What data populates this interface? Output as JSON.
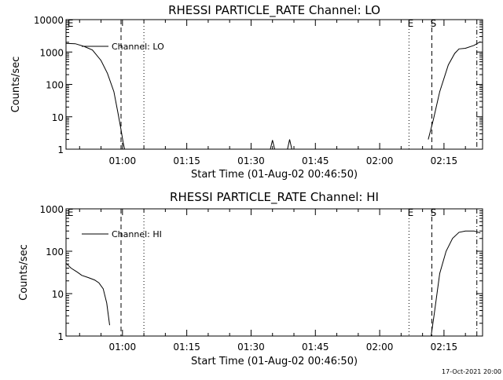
{
  "footer": "17-Oct-2021 20:00",
  "chart_data": [
    {
      "type": "line",
      "title": "RHESSI PARTICLE_RATE Channel: LO",
      "xlabel": "Start Time (01-Aug-02 00:46:50)",
      "ylabel": "Counts/sec",
      "yscale": "log",
      "ylim": [
        1,
        10000
      ],
      "xlim": [
        "00:46:50",
        "02:24:00"
      ],
      "x_ticks": [
        "01:00",
        "01:15",
        "01:30",
        "01:45",
        "02:00",
        "02:15"
      ],
      "y_ticks": [
        "1",
        "10",
        "100",
        "1000",
        "10000"
      ],
      "legend": "top-left",
      "series": [
        {
          "name": "Channel: LO",
          "segments": [
            {
              "x": [
                "00:46:50",
                "00:49:00",
                "00:51:00",
                "00:53:00",
                "00:55:00",
                "00:56:30",
                "00:58:00",
                "00:59:00",
                "00:59:40",
                "01:00:10",
                "01:00:30"
              ],
              "y": [
                1850,
                1800,
                1500,
                1150,
                550,
                220,
                60,
                12,
                4,
                1.6,
                1
              ]
            },
            {
              "x": [
                "01:34:30",
                "01:35:00",
                "01:35:30"
              ],
              "y": [
                1,
                1.9,
                1
              ]
            },
            {
              "x": [
                "01:38:30",
                "01:39:00",
                "01:39:30"
              ],
              "y": [
                1,
                2.0,
                1
              ]
            },
            {
              "x": [
                "02:11:20",
                "02:12:30",
                "02:14:00",
                "02:16:00",
                "02:17:30",
                "02:18:30",
                "02:20:00",
                "02:22:00",
                "02:23:30"
              ],
              "y": [
                2,
                8,
                60,
                400,
                900,
                1250,
                1300,
                1600,
                2100
              ]
            }
          ]
        }
      ],
      "markers": [
        {
          "time": "00:47:30",
          "label": "E",
          "style": "none"
        },
        {
          "time": "00:59:40",
          "label": "",
          "style": "dashed"
        },
        {
          "time": "01:05:00",
          "label": "",
          "style": "dotted"
        },
        {
          "time": "02:06:50",
          "label": "E",
          "style": "dotted"
        },
        {
          "time": "02:12:10",
          "label": "S",
          "style": "dashed"
        },
        {
          "time": "02:22:40",
          "label": "",
          "style": "dashdot"
        }
      ]
    },
    {
      "type": "line",
      "title": "RHESSI PARTICLE_RATE Channel: HI",
      "xlabel": "Start Time (01-Aug-02 00:46:50)",
      "ylabel": "Counts/sec",
      "yscale": "log",
      "ylim": [
        1,
        1000
      ],
      "xlim": [
        "00:46:50",
        "02:24:00"
      ],
      "x_ticks": [
        "01:00",
        "01:15",
        "01:30",
        "01:45",
        "02:00",
        "02:15"
      ],
      "y_ticks": [
        "1",
        "10",
        "100",
        "1000"
      ],
      "legend": "top-left",
      "series": [
        {
          "name": "Channel: HI",
          "segments": [
            {
              "x": [
                "00:46:50",
                "00:48:00",
                "00:49:30",
                "00:50:30",
                "00:52:00",
                "00:53:30",
                "00:54:30",
                "00:55:30",
                "00:56:20",
                "00:57:00"
              ],
              "y": [
                52,
                40,
                32,
                27,
                24,
                21,
                18,
                13,
                6,
                1.8
              ]
            },
            {
              "x": [
                "02:12:00",
                "02:12:40",
                "02:14:00",
                "02:15:30",
                "02:17:00",
                "02:18:30",
                "02:20:00",
                "02:22:00",
                "02:23:30"
              ],
              "y": [
                1,
                3,
                30,
                100,
                200,
                280,
                300,
                300,
                270
              ]
            }
          ]
        }
      ],
      "markers": [
        {
          "time": "00:47:30",
          "label": "E",
          "style": "none"
        },
        {
          "time": "00:59:40",
          "label": "",
          "style": "dashed"
        },
        {
          "time": "01:05:00",
          "label": "",
          "style": "dotted"
        },
        {
          "time": "02:06:50",
          "label": "E",
          "style": "dotted"
        },
        {
          "time": "02:12:10",
          "label": "S",
          "style": "dashed"
        },
        {
          "time": "02:22:40",
          "label": "",
          "style": "dashdot"
        }
      ]
    }
  ]
}
